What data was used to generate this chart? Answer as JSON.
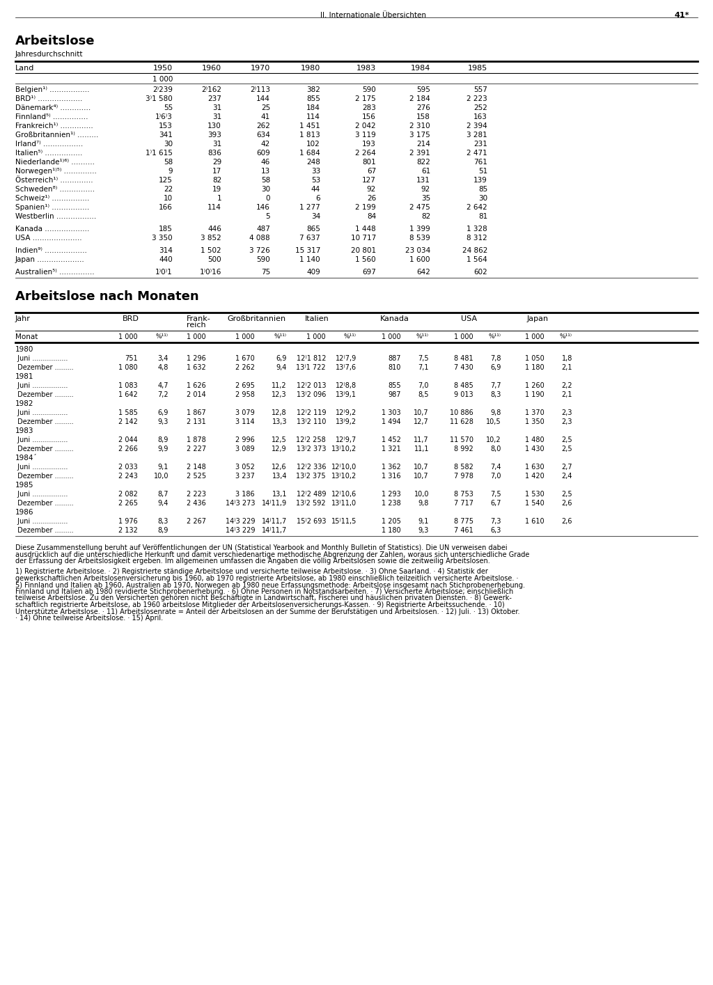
{
  "page_header_left": "II. Internationale Übersichten",
  "page_header_right": "41*",
  "title1": "Arbeitslose",
  "subtitle1": "Jahresdurchschnitt",
  "table1_headers": [
    "Land",
    "1950",
    "1960",
    "1970",
    "1980",
    "1983",
    "1984",
    "1985"
  ],
  "table1_subheader": "1 000",
  "table1_rows": [
    [
      "Belgien¹⁾ .................",
      "2⁾239",
      "2⁾162",
      "2⁾113",
      "382",
      "590",
      "595",
      "557"
    ],
    [
      "BRD¹⁾ ...................",
      "3⁾1 580",
      "237",
      "144",
      "855",
      "2 175",
      "2 184",
      "2 223"
    ],
    [
      "Dänemark⁴⁾ .............",
      "55",
      "31",
      "25",
      "184",
      "283",
      "276",
      "252"
    ],
    [
      "Finnland⁵⁾ ...............",
      "1⁾6⁾3",
      "31",
      "41",
      "114",
      "156",
      "158",
      "163"
    ],
    [
      "Frankreich¹⁾ ..............",
      "153",
      "130",
      "262",
      "1 451",
      "2 042",
      "2 310",
      "2 394"
    ],
    [
      "Großbritannien¹⁾ .........",
      "341",
      "393",
      "634",
      "1 813",
      "3 119",
      "3 175",
      "3 281"
    ],
    [
      "Irland⁷⁾ .................",
      "30",
      "31",
      "42",
      "102",
      "193",
      "214",
      "231"
    ],
    [
      "Italien⁵⁾ ................",
      "1⁾1 615",
      "836",
      "609",
      "1 684",
      "2 264",
      "2 391",
      "2 471"
    ],
    [
      "Niederlande¹⁾⁶⁾ ..........",
      "58",
      "29",
      "46",
      "248",
      "801",
      "822",
      "761"
    ],
    [
      "Norwegen¹⁾⁵⁾ ..............",
      "9",
      "17",
      "13",
      "33",
      "67",
      "61",
      "51"
    ],
    [
      "Österreich¹⁾ ..............",
      "125",
      "82",
      "58",
      "53",
      "127",
      "131",
      "139"
    ],
    [
      "Schweden⁸⁾ ...............",
      "22",
      "19",
      "30",
      "44",
      "92",
      "92",
      "85"
    ],
    [
      "Schweiz¹⁾ ................",
      "10",
      "1",
      "0",
      "6",
      "26",
      "35",
      "30"
    ],
    [
      "Spanien¹⁾ ................",
      "166",
      "114",
      "146",
      "1 277",
      "2 199",
      "2 475",
      "2 642"
    ],
    [
      "Westberlin .................",
      "",
      "",
      "5",
      "34",
      "84",
      "82",
      "81"
    ],
    [
      "_gap_",
      "",
      "",
      "",
      "",
      "",
      "",
      ""
    ],
    [
      "Kanada ...................",
      "185",
      "446",
      "487",
      "865",
      "1 448",
      "1 399",
      "1 328"
    ],
    [
      "USA .....................",
      "3 350",
      "3 852",
      "4 088",
      "7 637",
      "10 717",
      "8 539",
      "8 312"
    ],
    [
      "_gap_",
      "",
      "",
      "",
      "",
      "",
      "",
      ""
    ],
    [
      "Indien⁹⁾ ..................",
      "314",
      "1 502",
      "3 726",
      "15 317",
      "20 801",
      "23 034",
      "24 862"
    ],
    [
      "Japan ....................",
      "440",
      "500",
      "590",
      "1 140",
      "1 560",
      "1 600",
      "1 564"
    ],
    [
      "_gap_",
      "",
      "",
      "",
      "",
      "",
      "",
      ""
    ],
    [
      "Australien⁵⁾ ...............",
      "1⁾0⁾1",
      "1⁾0⁾16",
      "75",
      "409",
      "697",
      "642",
      "602"
    ]
  ],
  "title2": "Arbeitslose nach Monaten",
  "table2_rows": [
    [
      "1980",
      "",
      "",
      "",
      "",
      "",
      "",
      "",
      "",
      "",
      "",
      "",
      "",
      ""
    ],
    [
      " Juni .................",
      "751",
      "3,4",
      "1 296",
      "1 670",
      "6,9",
      "12⁾1 812",
      "12⁾7,9",
      "887",
      "7,5",
      "8 481",
      "7,8",
      "1 050",
      "1,8"
    ],
    [
      " Dezember .........",
      "1 080",
      "4,8",
      "1 632",
      "2 262",
      "9,4",
      "13⁾1 722",
      "13⁾7,6",
      "810",
      "7,1",
      "7 430",
      "6,9",
      "1 180",
      "2,1"
    ],
    [
      "1981",
      "",
      "",
      "",
      "",
      "",
      "",
      "",
      "",
      "",
      "",
      "",
      "",
      ""
    ],
    [
      " Juni .................",
      "1 083",
      "4,7",
      "1 626",
      "2 695",
      "11,2",
      "12⁾2 013",
      "12⁾8,8",
      "855",
      "7,0",
      "8 485",
      "7,7",
      "1 260",
      "2,2"
    ],
    [
      " Dezember .........",
      "1 642",
      "7,2",
      "2 014",
      "2 958",
      "12,3",
      "13⁾2 096",
      "13⁾9,1",
      "987",
      "8,5",
      "9 013",
      "8,3",
      "1 190",
      "2,1"
    ],
    [
      "1982",
      "",
      "",
      "",
      "",
      "",
      "",
      "",
      "",
      "",
      "",
      "",
      "",
      ""
    ],
    [
      " Juni .................",
      "1 585",
      "6,9",
      "1 867",
      "3 079",
      "12,8",
      "12⁾2 119",
      "12⁾9,2",
      "1 303",
      "10,7",
      "10 886",
      "9,8",
      "1 370",
      "2,3"
    ],
    [
      " Dezember .........",
      "2 142",
      "9,3",
      "2 131",
      "3 114",
      "13,3",
      "13⁾2 110",
      "13⁾9,2",
      "1 494",
      "12,7",
      "11 628",
      "10,5",
      "1 350",
      "2,3"
    ],
    [
      "1983",
      "",
      "",
      "",
      "",
      "",
      "",
      "",
      "",
      "",
      "",
      "",
      "",
      ""
    ],
    [
      " Juni .................",
      "2 044",
      "8,9",
      "1 878",
      "2 996",
      "12,5",
      "12⁾2 258",
      "12⁾9,7",
      "1 452",
      "11,7",
      "11 570",
      "10,2",
      "1 480",
      "2,5"
    ],
    [
      " Dezember .........",
      "2 266",
      "9,9",
      "2 227",
      "3 089",
      "12,9",
      "13⁾2 373",
      "13⁾10,2",
      "1 321",
      "11,1",
      "8 992",
      "8,0",
      "1 430",
      "2,5"
    ],
    [
      "1984´",
      "",
      "",
      "",
      "",
      "",
      "",
      "",
      "",
      "",
      "",
      "",
      "",
      ""
    ],
    [
      " Juni .................",
      "2 033",
      "9,1",
      "2 148",
      "3 052",
      "12,6",
      "12⁾2 336",
      "12⁾10,0",
      "1 362",
      "10,7",
      "8 582",
      "7,4",
      "1 630",
      "2,7"
    ],
    [
      " Dezember .........",
      "2 243",
      "10,0",
      "2 525",
      "3 237",
      "13,4",
      "13⁾2 375",
      "13⁾10,2",
      "1 316",
      "10,7",
      "7 978",
      "7,0",
      "1 420",
      "2,4"
    ],
    [
      "1985",
      "",
      "",
      "",
      "",
      "",
      "",
      "",
      "",
      "",
      "",
      "",
      "",
      ""
    ],
    [
      " Juni .................",
      "2 082",
      "8,7",
      "2 223",
      "3 186",
      "13,1",
      "12⁾2 489",
      "12⁾10,6",
      "1 293",
      "10,0",
      "8 753",
      "7,5",
      "1 530",
      "2,5"
    ],
    [
      " Dezember .........",
      "2 265",
      "9,4",
      "2 436",
      "14⁾3 273",
      "14⁾11,9",
      "13⁾2 592",
      "13⁾11,0",
      "1 238",
      "9,8",
      "7 717",
      "6,7",
      "1 540",
      "2,6"
    ],
    [
      "1986",
      "",
      "",
      "",
      "",
      "",
      "",
      "",
      "",
      "",
      "",
      "",
      "",
      ""
    ],
    [
      " Juni .................",
      "1 976",
      "8,3",
      "2 267",
      "14⁾3 229",
      "14⁾11,7",
      "15⁾2 693",
      "15⁾11,5",
      "1 205",
      "9,1",
      "8 775",
      "7,3",
      "1 610",
      "2,6"
    ],
    [
      " Dezember .........",
      "2 132",
      "8,9",
      "",
      "14⁾3 229",
      "14⁾11,7",
      "",
      "",
      "1 180",
      "9,3",
      "7 461",
      "6,3",
      "",
      ""
    ]
  ],
  "footnotes_intro": [
    "Diese Zusammenstellung beruht auf Veröffentlichungen der UN (Statistical Yearbook and Monthly Bulletin of Statistics). Die UN verweisen dabei",
    "ausdrücklich auf die unterschiedliche Herkunft und damit verschiedenartige methodische Abgrenzung der Zahlen, woraus sich unterschiedliche Grade",
    "der Erfassung der Arbeitslosigkeit ergeben. Im allgemeinen umfassen die Angaben die völlig Arbeitslosen sowie die zeitweilig Arbeitslosen."
  ],
  "footnotes_numbered": [
    "1) Registrierte Arbeitslose. · 2) Registrierte ständige Arbeitslose und versicherte teilweise Arbeitslose. · 3) Ohne Saarland. · 4) Statistik der",
    "gewerkschaftlichen Arbeitslosenversicherung bis 1960, ab 1970 registrierte Arbeitslose, ab 1980 einschließlich teilzeitlich versicherte Arbeitslose. ·",
    "5) Finnland und Italien ab 1960, Australien ab 1970, Norwegen ab 1980 neue Erfassungsmethode: Arbeitslose insgesamt nach Stichprobenerhebung.",
    "Finnland und Italien ab 1980 revidierte Stichprobenerhebung. · 6) Ohne Personen in Notstandsarbeiten. · 7) Versicherte Arbeitslose; einschließlich",
    "teilweise Arbeitslose. Zu den Versicherten gehören nicht Beschäftigte in Landwirtschaft, Fischerei und häuslichen privaten Diensten. · 8) Gewerk-",
    "schaftlich registrierte Arbeitslose, ab 1960 arbeitslose Mitglieder der Arbeitslosenversicherungs-Kassen. · 9) Registrierte Arbeitssuchende. · 10)",
    "Unterstützte Arbeitslose. · 11) Arbeitslosenrate = Anteil der Arbeitslosen an der Summe der Berufstätigen und Arbeitslosen. · 12) Juli. · 13) Oktober.",
    "· 14) Ohne teilweise Arbeitslose. · 15) April."
  ]
}
